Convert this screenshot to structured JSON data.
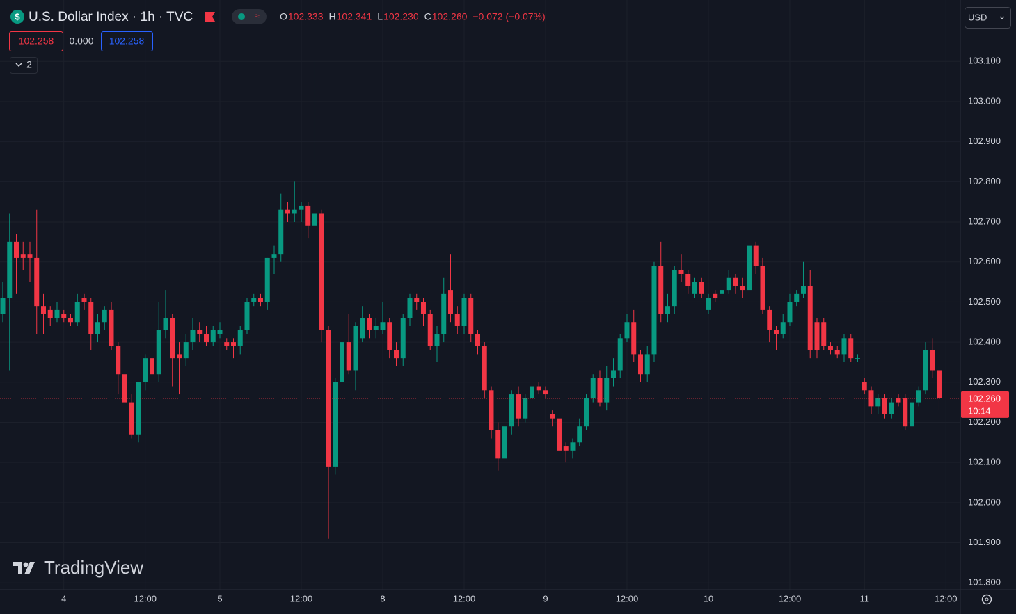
{
  "header": {
    "symbol": "U.S. Dollar Index · 1h · TVC",
    "ohlc": [
      {
        "key": "O",
        "value": "102.333"
      },
      {
        "key": "H",
        "value": "102.341"
      },
      {
        "key": "L",
        "value": "102.230"
      },
      {
        "key": "C",
        "value": "102.260"
      }
    ],
    "change": "−0.072 (−0.07%)",
    "bid": "102.258",
    "spread": "0.000",
    "ask": "102.258",
    "indicators": "2",
    "currency": "USD",
    "logo": "TradingView"
  },
  "chart_data": {
    "type": "candlestick",
    "up_color": "#089981",
    "down_color": "#f23645",
    "grid": true,
    "last_price_label": "102.260",
    "countdown": "10:14",
    "xlim": [
      -0.41,
      141.13
    ],
    "xticks": [
      {
        "value": 9,
        "label": "4"
      },
      {
        "value": 21,
        "label": "12:00"
      },
      {
        "value": 32,
        "label": "5"
      },
      {
        "value": 44,
        "label": "12:00"
      },
      {
        "value": 56,
        "label": "8"
      },
      {
        "value": 68,
        "label": "12:00"
      },
      {
        "value": 80,
        "label": "9"
      },
      {
        "value": 92,
        "label": "12:00"
      },
      {
        "value": 104,
        "label": "10"
      },
      {
        "value": 116,
        "label": "12:00"
      },
      {
        "value": 127,
        "label": "11"
      },
      {
        "value": 139,
        "label": "12:00"
      }
    ],
    "ylim": [
      101.783,
      103.253
    ],
    "yticks": [
      {
        "value": 101.8,
        "label": "101.800"
      },
      {
        "value": 101.9,
        "label": "101.900"
      },
      {
        "value": 102.0,
        "label": "102.000"
      },
      {
        "value": 102.1,
        "label": "102.100"
      },
      {
        "value": 102.2,
        "label": "102.200"
      },
      {
        "value": 102.3,
        "label": "102.300"
      },
      {
        "value": 102.4,
        "label": "102.400"
      },
      {
        "value": 102.5,
        "label": "102.500"
      },
      {
        "value": 102.6,
        "label": "102.600"
      },
      {
        "value": 102.7,
        "label": "102.700"
      },
      {
        "value": 102.8,
        "label": "102.800"
      },
      {
        "value": 102.9,
        "label": "102.900"
      },
      {
        "value": 103.0,
        "label": "103.000"
      },
      {
        "value": 103.1,
        "label": "103.100"
      }
    ],
    "open": [
      102.47,
      102.51,
      102.65,
      102.62,
      102.62,
      102.61,
      102.49,
      102.48,
      102.46,
      102.47,
      102.46,
      102.45,
      102.51,
      102.5,
      102.42,
      102.45,
      102.48,
      102.39,
      102.32,
      102.25,
      102.17,
      102.3,
      102.36,
      102.32,
      102.43,
      102.46,
      102.37,
      102.36,
      102.4,
      102.43,
      102.42,
      102.4,
      102.42,
      102.4,
      102.4,
      102.39,
      102.43,
      102.5,
      102.51,
      102.5,
      102.61,
      102.62,
      102.73,
      102.72,
      102.73,
      102.74,
      102.69,
      102.72,
      102.43,
      102.09,
      102.3,
      102.4,
      102.33,
      102.41,
      102.46,
      102.43,
      102.43,
      102.45,
      102.38,
      102.36,
      102.46,
      102.51,
      102.5,
      102.47,
      102.39,
      102.42,
      102.53,
      102.47,
      102.44,
      102.51,
      102.42,
      102.39,
      102.28,
      102.18,
      102.11,
      102.19,
      102.27,
      102.21,
      102.26,
      102.29,
      102.28,
      102.22,
      102.21,
      102.14,
      102.13,
      102.15,
      102.19,
      102.26,
      102.31,
      102.25,
      102.31,
      102.33,
      102.41,
      102.45,
      102.37,
      102.32,
      102.37,
      102.59,
      102.47,
      102.49,
      102.58,
      102.57,
      102.52,
      102.55,
      102.48,
      102.52,
      102.52,
      102.53,
      102.56,
      102.54,
      102.53,
      102.64,
      102.59,
      102.48,
      102.43,
      102.42,
      102.45,
      102.5,
      102.52,
      102.54,
      102.45,
      102.45,
      102.39,
      102.38,
      102.37,
      102.41,
      102.36,
      102.3,
      102.28,
      102.24,
      102.26,
      102.22,
      102.26,
      102.26,
      102.19,
      102.25,
      102.28,
      102.38,
      102.33
    ],
    "high": [
      102.55,
      102.72,
      102.67,
      102.65,
      102.65,
      102.73,
      102.52,
      102.49,
      102.5,
      102.48,
      102.47,
      102.52,
      102.52,
      102.51,
      102.47,
      102.49,
      102.5,
      102.4,
      102.36,
      102.27,
      102.3,
      102.37,
      102.37,
      102.5,
      102.53,
      102.47,
      102.4,
      102.42,
      102.46,
      102.45,
      102.44,
      102.44,
      102.45,
      102.41,
      102.41,
      102.44,
      102.51,
      102.52,
      102.52,
      102.61,
      102.64,
      102.77,
      102.75,
      102.8,
      102.75,
      102.75,
      103.1,
      102.73,
      102.44,
      102.31,
      102.43,
      102.47,
      102.45,
      102.49,
      102.47,
      102.46,
      102.5,
      102.46,
      102.4,
      102.47,
      102.52,
      102.52,
      102.51,
      102.48,
      102.44,
      102.56,
      102.62,
      102.49,
      102.52,
      102.52,
      102.43,
      102.4,
      102.29,
      102.2,
      102.2,
      102.28,
      102.29,
      102.27,
      102.3,
      102.3,
      102.29,
      102.23,
      102.22,
      102.15,
      102.16,
      102.21,
      102.27,
      102.32,
      102.33,
      102.34,
      102.36,
      102.42,
      102.47,
      102.48,
      102.38,
      102.39,
      102.6,
      102.65,
      102.52,
      102.59,
      102.62,
      102.58,
      102.56,
      102.56,
      102.52,
      102.53,
      102.55,
      102.58,
      102.57,
      102.56,
      102.65,
      102.65,
      102.61,
      102.49,
      102.44,
      102.47,
      102.52,
      102.53,
      102.6,
      102.58,
      102.46,
      102.46,
      102.4,
      102.39,
      102.42,
      102.42,
      102.37,
      102.31,
      102.29,
      102.27,
      102.27,
      102.26,
      102.27,
      102.27,
      102.26,
      102.29,
      102.4,
      102.41,
      102.34
    ],
    "low": [
      102.45,
      102.33,
      102.52,
      102.58,
      102.55,
      102.42,
      102.42,
      102.44,
      102.45,
      102.45,
      102.44,
      102.44,
      102.48,
      102.38,
      102.4,
      102.43,
      102.38,
      102.27,
      102.22,
      102.16,
      102.15,
      102.28,
      102.3,
      102.3,
      102.41,
      102.29,
      102.27,
      102.34,
      102.38,
      102.4,
      102.39,
      102.39,
      102.41,
      102.38,
      102.36,
      102.37,
      102.42,
      102.49,
      102.49,
      102.48,
      102.57,
      102.6,
      102.7,
      102.7,
      102.7,
      102.66,
      102.68,
      102.4,
      101.91,
      102.07,
      102.28,
      102.32,
      102.28,
      102.4,
      102.41,
      102.41,
      102.42,
      102.36,
      102.34,
      102.34,
      102.44,
      102.48,
      102.44,
      102.38,
      102.35,
      102.4,
      102.45,
      102.42,
      102.42,
      102.4,
      102.37,
      102.26,
      102.16,
      102.08,
      102.08,
      102.17,
      102.19,
      102.2,
      102.24,
      102.27,
      102.26,
      102.19,
      102.11,
      102.1,
      102.11,
      102.14,
      102.18,
      102.25,
      102.24,
      102.23,
      102.29,
      102.31,
      102.4,
      102.35,
      102.3,
      102.3,
      102.35,
      102.45,
      102.45,
      102.47,
      102.55,
      102.52,
      102.51,
      102.51,
      102.47,
      102.5,
      102.51,
      102.52,
      102.52,
      102.51,
      102.52,
      102.57,
      102.47,
      102.4,
      102.38,
      102.41,
      102.44,
      102.49,
      102.51,
      102.36,
      102.36,
      102.38,
      102.37,
      102.36,
      102.35,
      102.35,
      102.35,
      102.27,
      102.22,
      102.22,
      102.21,
      102.21,
      102.24,
      102.18,
      102.18,
      102.24,
      102.27,
      102.31,
      102.23
    ],
    "close": [
      102.51,
      102.65,
      102.61,
      102.61,
      102.61,
      102.49,
      102.47,
      102.46,
      102.48,
      102.46,
      102.45,
      102.5,
      102.5,
      102.42,
      102.45,
      102.48,
      102.39,
      102.32,
      102.25,
      102.17,
      102.3,
      102.36,
      102.32,
      102.43,
      102.46,
      102.36,
      102.36,
      102.4,
      102.43,
      102.42,
      102.4,
      102.43,
      102.43,
      102.39,
      102.39,
      102.43,
      102.5,
      102.51,
      102.5,
      102.61,
      102.62,
      102.73,
      102.72,
      102.73,
      102.74,
      102.69,
      102.72,
      102.43,
      102.09,
      102.3,
      102.4,
      102.33,
      102.44,
      102.46,
      102.43,
      102.44,
      102.45,
      102.38,
      102.36,
      102.46,
      102.51,
      102.5,
      102.47,
      102.39,
      102.42,
      102.52,
      102.47,
      102.44,
      102.51,
      102.42,
      102.39,
      102.28,
      102.18,
      102.11,
      102.19,
      102.27,
      102.21,
      102.26,
      102.29,
      102.28,
      102.27,
      102.21,
      102.13,
      102.13,
      102.15,
      102.19,
      102.26,
      102.31,
      102.25,
      102.31,
      102.33,
      102.41,
      102.45,
      102.37,
      102.32,
      102.37,
      102.59,
      102.47,
      102.49,
      102.58,
      102.57,
      102.54,
      102.55,
      102.52,
      102.51,
      102.51,
      102.53,
      102.56,
      102.54,
      102.53,
      102.64,
      102.59,
      102.48,
      102.43,
      102.42,
      102.45,
      102.5,
      102.52,
      102.54,
      102.38,
      102.38,
      102.39,
      102.38,
      102.37,
      102.41,
      102.36,
      102.36,
      102.28,
      102.24,
      102.26,
      102.22,
      102.25,
      102.25,
      102.19,
      102.25,
      102.28,
      102.38,
      102.33,
      102.26
    ]
  }
}
